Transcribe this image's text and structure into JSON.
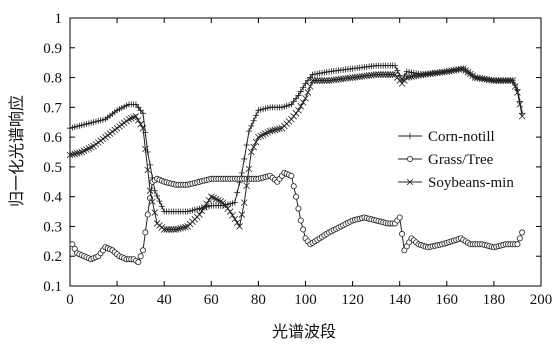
{
  "chart_data": {
    "type": "line",
    "title": "",
    "xlabel": "光谱波段",
    "ylabel": "归一化光谱响应",
    "xlim": [
      0,
      200
    ],
    "ylim": [
      0.1,
      1.0
    ],
    "xticks": [
      0,
      20,
      40,
      60,
      80,
      100,
      120,
      140,
      160,
      180,
      200
    ],
    "yticks": [
      0.1,
      0.2,
      0.3,
      0.4,
      0.5,
      0.6,
      0.7,
      0.8,
      0.9,
      1.0
    ],
    "ytick_labels": [
      "0.1",
      "0.2",
      "0.3",
      "0.4",
      "0.5",
      "0.6",
      "0.7",
      "0.8",
      "0.9",
      "1"
    ],
    "grid": false,
    "legend_position": "right",
    "series": [
      {
        "name": "Corn-notill",
        "marker": "plus",
        "points": [
          [
            0,
            0.63
          ],
          [
            5,
            0.64
          ],
          [
            10,
            0.65
          ],
          [
            15,
            0.66
          ],
          [
            20,
            0.69
          ],
          [
            25,
            0.71
          ],
          [
            28,
            0.71
          ],
          [
            31,
            0.68
          ],
          [
            33,
            0.55
          ],
          [
            36,
            0.42
          ],
          [
            40,
            0.35
          ],
          [
            45,
            0.35
          ],
          [
            50,
            0.35
          ],
          [
            55,
            0.36
          ],
          [
            60,
            0.37
          ],
          [
            65,
            0.37
          ],
          [
            70,
            0.38
          ],
          [
            73,
            0.48
          ],
          [
            76,
            0.62
          ],
          [
            80,
            0.69
          ],
          [
            85,
            0.7
          ],
          [
            90,
            0.7
          ],
          [
            94,
            0.71
          ],
          [
            97,
            0.74
          ],
          [
            100,
            0.78
          ],
          [
            103,
            0.81
          ],
          [
            110,
            0.82
          ],
          [
            120,
            0.83
          ],
          [
            130,
            0.84
          ],
          [
            138,
            0.84
          ],
          [
            141,
            0.79
          ],
          [
            143,
            0.82
          ],
          [
            150,
            0.81
          ],
          [
            160,
            0.82
          ],
          [
            167,
            0.83
          ],
          [
            172,
            0.8
          ],
          [
            180,
            0.79
          ],
          [
            188,
            0.79
          ],
          [
            190,
            0.76
          ],
          [
            192,
            0.68
          ]
        ]
      },
      {
        "name": "Grass/Tree",
        "marker": "circle",
        "points": [
          [
            1,
            0.24
          ],
          [
            3,
            0.21
          ],
          [
            6,
            0.2
          ],
          [
            9,
            0.19
          ],
          [
            12,
            0.2
          ],
          [
            15,
            0.23
          ],
          [
            18,
            0.22
          ],
          [
            21,
            0.2
          ],
          [
            24,
            0.19
          ],
          [
            27,
            0.19
          ],
          [
            29,
            0.18
          ],
          [
            31,
            0.22
          ],
          [
            33,
            0.34
          ],
          [
            35,
            0.45
          ],
          [
            37,
            0.46
          ],
          [
            40,
            0.45
          ],
          [
            45,
            0.44
          ],
          [
            50,
            0.44
          ],
          [
            55,
            0.45
          ],
          [
            60,
            0.46
          ],
          [
            65,
            0.46
          ],
          [
            70,
            0.46
          ],
          [
            75,
            0.46
          ],
          [
            80,
            0.46
          ],
          [
            85,
            0.47
          ],
          [
            88,
            0.45
          ],
          [
            91,
            0.48
          ],
          [
            94,
            0.47
          ],
          [
            96,
            0.4
          ],
          [
            98,
            0.32
          ],
          [
            100,
            0.26
          ],
          [
            102,
            0.24
          ],
          [
            106,
            0.26
          ],
          [
            110,
            0.28
          ],
          [
            115,
            0.3
          ],
          [
            120,
            0.32
          ],
          [
            125,
            0.33
          ],
          [
            130,
            0.32
          ],
          [
            135,
            0.31
          ],
          [
            138,
            0.31
          ],
          [
            140,
            0.33
          ],
          [
            142,
            0.22
          ],
          [
            145,
            0.26
          ],
          [
            148,
            0.24
          ],
          [
            152,
            0.23
          ],
          [
            158,
            0.24
          ],
          [
            162,
            0.25
          ],
          [
            166,
            0.26
          ],
          [
            170,
            0.24
          ],
          [
            175,
            0.24
          ],
          [
            180,
            0.23
          ],
          [
            185,
            0.24
          ],
          [
            190,
            0.24
          ],
          [
            192,
            0.28
          ]
        ]
      },
      {
        "name": "Soybeans-min",
        "marker": "x",
        "points": [
          [
            0,
            0.54
          ],
          [
            5,
            0.55
          ],
          [
            10,
            0.57
          ],
          [
            15,
            0.6
          ],
          [
            20,
            0.63
          ],
          [
            25,
            0.66
          ],
          [
            28,
            0.67
          ],
          [
            31,
            0.63
          ],
          [
            34,
            0.42
          ],
          [
            37,
            0.31
          ],
          [
            40,
            0.29
          ],
          [
            45,
            0.29
          ],
          [
            50,
            0.3
          ],
          [
            55,
            0.34
          ],
          [
            60,
            0.4
          ],
          [
            65,
            0.38
          ],
          [
            68,
            0.35
          ],
          [
            72,
            0.3
          ],
          [
            74,
            0.38
          ],
          [
            77,
            0.55
          ],
          [
            80,
            0.6
          ],
          [
            85,
            0.62
          ],
          [
            90,
            0.63
          ],
          [
            94,
            0.66
          ],
          [
            97,
            0.69
          ],
          [
            100,
            0.73
          ],
          [
            103,
            0.79
          ],
          [
            110,
            0.79
          ],
          [
            120,
            0.8
          ],
          [
            130,
            0.81
          ],
          [
            138,
            0.81
          ],
          [
            141,
            0.78
          ],
          [
            143,
            0.8
          ],
          [
            150,
            0.81
          ],
          [
            160,
            0.82
          ],
          [
            167,
            0.83
          ],
          [
            172,
            0.8
          ],
          [
            180,
            0.79
          ],
          [
            188,
            0.79
          ],
          [
            190,
            0.75
          ],
          [
            192,
            0.67
          ]
        ]
      }
    ]
  }
}
